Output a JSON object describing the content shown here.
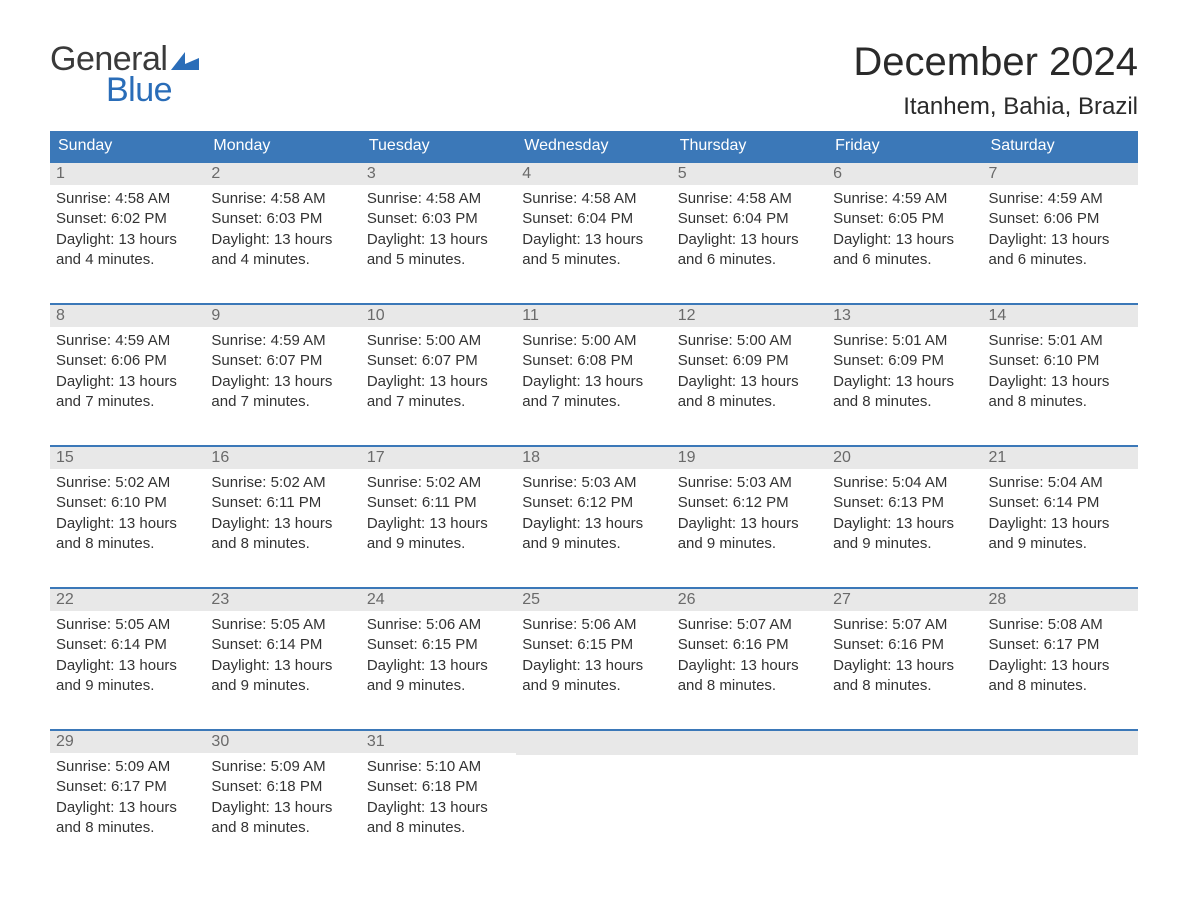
{
  "logo": {
    "text1": "General",
    "text2": "Blue",
    "flag_color": "#2a6db8"
  },
  "title": "December 2024",
  "location": "Itanhem, Bahia, Brazil",
  "colors": {
    "header_bg": "#3b78b8",
    "header_text": "#ffffff",
    "daynum_bg": "#e8e8e8",
    "daynum_text": "#6a6a6a",
    "body_text": "#333333",
    "week_border": "#3b78b8",
    "page_bg": "#ffffff"
  },
  "day_headers": [
    "Sunday",
    "Monday",
    "Tuesday",
    "Wednesday",
    "Thursday",
    "Friday",
    "Saturday"
  ],
  "weeks": [
    [
      {
        "n": "1",
        "sunrise": "Sunrise: 4:58 AM",
        "sunset": "Sunset: 6:02 PM",
        "dl1": "Daylight: 13 hours",
        "dl2": "and 4 minutes."
      },
      {
        "n": "2",
        "sunrise": "Sunrise: 4:58 AM",
        "sunset": "Sunset: 6:03 PM",
        "dl1": "Daylight: 13 hours",
        "dl2": "and 4 minutes."
      },
      {
        "n": "3",
        "sunrise": "Sunrise: 4:58 AM",
        "sunset": "Sunset: 6:03 PM",
        "dl1": "Daylight: 13 hours",
        "dl2": "and 5 minutes."
      },
      {
        "n": "4",
        "sunrise": "Sunrise: 4:58 AM",
        "sunset": "Sunset: 6:04 PM",
        "dl1": "Daylight: 13 hours",
        "dl2": "and 5 minutes."
      },
      {
        "n": "5",
        "sunrise": "Sunrise: 4:58 AM",
        "sunset": "Sunset: 6:04 PM",
        "dl1": "Daylight: 13 hours",
        "dl2": "and 6 minutes."
      },
      {
        "n": "6",
        "sunrise": "Sunrise: 4:59 AM",
        "sunset": "Sunset: 6:05 PM",
        "dl1": "Daylight: 13 hours",
        "dl2": "and 6 minutes."
      },
      {
        "n": "7",
        "sunrise": "Sunrise: 4:59 AM",
        "sunset": "Sunset: 6:06 PM",
        "dl1": "Daylight: 13 hours",
        "dl2": "and 6 minutes."
      }
    ],
    [
      {
        "n": "8",
        "sunrise": "Sunrise: 4:59 AM",
        "sunset": "Sunset: 6:06 PM",
        "dl1": "Daylight: 13 hours",
        "dl2": "and 7 minutes."
      },
      {
        "n": "9",
        "sunrise": "Sunrise: 4:59 AM",
        "sunset": "Sunset: 6:07 PM",
        "dl1": "Daylight: 13 hours",
        "dl2": "and 7 minutes."
      },
      {
        "n": "10",
        "sunrise": "Sunrise: 5:00 AM",
        "sunset": "Sunset: 6:07 PM",
        "dl1": "Daylight: 13 hours",
        "dl2": "and 7 minutes."
      },
      {
        "n": "11",
        "sunrise": "Sunrise: 5:00 AM",
        "sunset": "Sunset: 6:08 PM",
        "dl1": "Daylight: 13 hours",
        "dl2": "and 7 minutes."
      },
      {
        "n": "12",
        "sunrise": "Sunrise: 5:00 AM",
        "sunset": "Sunset: 6:09 PM",
        "dl1": "Daylight: 13 hours",
        "dl2": "and 8 minutes."
      },
      {
        "n": "13",
        "sunrise": "Sunrise: 5:01 AM",
        "sunset": "Sunset: 6:09 PM",
        "dl1": "Daylight: 13 hours",
        "dl2": "and 8 minutes."
      },
      {
        "n": "14",
        "sunrise": "Sunrise: 5:01 AM",
        "sunset": "Sunset: 6:10 PM",
        "dl1": "Daylight: 13 hours",
        "dl2": "and 8 minutes."
      }
    ],
    [
      {
        "n": "15",
        "sunrise": "Sunrise: 5:02 AM",
        "sunset": "Sunset: 6:10 PM",
        "dl1": "Daylight: 13 hours",
        "dl2": "and 8 minutes."
      },
      {
        "n": "16",
        "sunrise": "Sunrise: 5:02 AM",
        "sunset": "Sunset: 6:11 PM",
        "dl1": "Daylight: 13 hours",
        "dl2": "and 8 minutes."
      },
      {
        "n": "17",
        "sunrise": "Sunrise: 5:02 AM",
        "sunset": "Sunset: 6:11 PM",
        "dl1": "Daylight: 13 hours",
        "dl2": "and 9 minutes."
      },
      {
        "n": "18",
        "sunrise": "Sunrise: 5:03 AM",
        "sunset": "Sunset: 6:12 PM",
        "dl1": "Daylight: 13 hours",
        "dl2": "and 9 minutes."
      },
      {
        "n": "19",
        "sunrise": "Sunrise: 5:03 AM",
        "sunset": "Sunset: 6:12 PM",
        "dl1": "Daylight: 13 hours",
        "dl2": "and 9 minutes."
      },
      {
        "n": "20",
        "sunrise": "Sunrise: 5:04 AM",
        "sunset": "Sunset: 6:13 PM",
        "dl1": "Daylight: 13 hours",
        "dl2": "and 9 minutes."
      },
      {
        "n": "21",
        "sunrise": "Sunrise: 5:04 AM",
        "sunset": "Sunset: 6:14 PM",
        "dl1": "Daylight: 13 hours",
        "dl2": "and 9 minutes."
      }
    ],
    [
      {
        "n": "22",
        "sunrise": "Sunrise: 5:05 AM",
        "sunset": "Sunset: 6:14 PM",
        "dl1": "Daylight: 13 hours",
        "dl2": "and 9 minutes."
      },
      {
        "n": "23",
        "sunrise": "Sunrise: 5:05 AM",
        "sunset": "Sunset: 6:14 PM",
        "dl1": "Daylight: 13 hours",
        "dl2": "and 9 minutes."
      },
      {
        "n": "24",
        "sunrise": "Sunrise: 5:06 AM",
        "sunset": "Sunset: 6:15 PM",
        "dl1": "Daylight: 13 hours",
        "dl2": "and 9 minutes."
      },
      {
        "n": "25",
        "sunrise": "Sunrise: 5:06 AM",
        "sunset": "Sunset: 6:15 PM",
        "dl1": "Daylight: 13 hours",
        "dl2": "and 9 minutes."
      },
      {
        "n": "26",
        "sunrise": "Sunrise: 5:07 AM",
        "sunset": "Sunset: 6:16 PM",
        "dl1": "Daylight: 13 hours",
        "dl2": "and 8 minutes."
      },
      {
        "n": "27",
        "sunrise": "Sunrise: 5:07 AM",
        "sunset": "Sunset: 6:16 PM",
        "dl1": "Daylight: 13 hours",
        "dl2": "and 8 minutes."
      },
      {
        "n": "28",
        "sunrise": "Sunrise: 5:08 AM",
        "sunset": "Sunset: 6:17 PM",
        "dl1": "Daylight: 13 hours",
        "dl2": "and 8 minutes."
      }
    ],
    [
      {
        "n": "29",
        "sunrise": "Sunrise: 5:09 AM",
        "sunset": "Sunset: 6:17 PM",
        "dl1": "Daylight: 13 hours",
        "dl2": "and 8 minutes."
      },
      {
        "n": "30",
        "sunrise": "Sunrise: 5:09 AM",
        "sunset": "Sunset: 6:18 PM",
        "dl1": "Daylight: 13 hours",
        "dl2": "and 8 minutes."
      },
      {
        "n": "31",
        "sunrise": "Sunrise: 5:10 AM",
        "sunset": "Sunset: 6:18 PM",
        "dl1": "Daylight: 13 hours",
        "dl2": "and 8 minutes."
      },
      null,
      null,
      null,
      null
    ]
  ]
}
